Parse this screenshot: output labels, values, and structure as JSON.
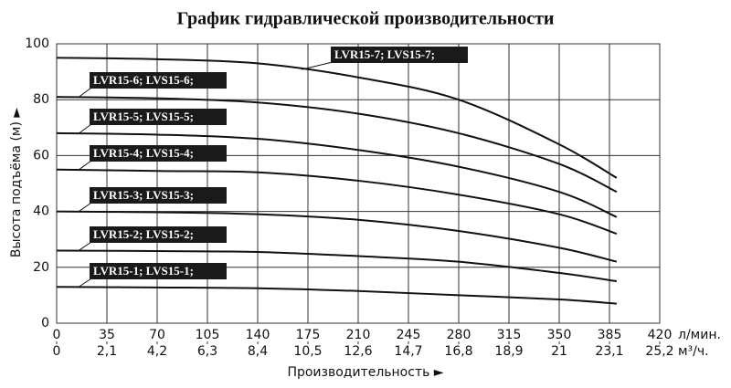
{
  "chart_data": {
    "type": "line",
    "title": "График гидравлической производительности",
    "x_label": "Производительность ►",
    "y_label": "Высота подъёма (м) ►",
    "x_unit": "л/мин.",
    "x2_unit": "м³/ч.",
    "x": [
      0,
      70,
      140,
      210,
      280,
      350,
      390
    ],
    "series": [
      {
        "name": "LVR15-1; LVS15-1;",
        "color": "#111111",
        "values": [
          13,
          12.8,
          12.5,
          11.5,
          10,
          8.5,
          7
        ]
      },
      {
        "name": "LVR15-2; LVS15-2;",
        "color": "#111111",
        "values": [
          26,
          25.8,
          25.5,
          24,
          22,
          18,
          15
        ]
      },
      {
        "name": "LVR15-3; LVS15-3;",
        "color": "#111111",
        "values": [
          40,
          39.7,
          39,
          37,
          33,
          27,
          22
        ]
      },
      {
        "name": "LVR15-4; LVS15-4;",
        "color": "#111111",
        "values": [
          55,
          54.5,
          54,
          51,
          46,
          39,
          32
        ]
      },
      {
        "name": "LVR15-5; LVS15-5;",
        "color": "#111111",
        "values": [
          68,
          67.5,
          66,
          62,
          56,
          47,
          38
        ]
      },
      {
        "name": "LVR15-6; LVS15-6;",
        "color": "#111111",
        "values": [
          81,
          80.5,
          79,
          75,
          68,
          57,
          47
        ]
      },
      {
        "name": "LVR15-7; LVS15-7;",
        "color": "#111111",
        "values": [
          95,
          94.5,
          93,
          88,
          80,
          64,
          52
        ]
      }
    ],
    "xlim": [
      0,
      420
    ],
    "xticks": [
      0,
      35,
      70,
      105,
      140,
      175,
      210,
      245,
      280,
      315,
      350,
      385,
      420
    ],
    "x2lim": [
      0,
      25.2
    ],
    "x2ticks": [
      0,
      {
        "value": 2.1,
        "label": "2,1"
      },
      {
        "value": 4.2,
        "label": "4,2"
      },
      {
        "value": 6.3,
        "label": "6,3"
      },
      {
        "value": 8.4,
        "label": "8,4"
      },
      {
        "value": 10.5,
        "label": "10,5"
      },
      {
        "value": 12.6,
        "label": "12,6"
      },
      {
        "value": 14.7,
        "label": "14,7"
      },
      {
        "value": 16.8,
        "label": "16,8"
      },
      {
        "value": 18.9,
        "label": "18,9"
      },
      {
        "value": 21,
        "label": "21"
      },
      {
        "value": 23.1,
        "label": "23,1"
      },
      {
        "value": 25.2,
        "label": "25,2"
      }
    ],
    "ylim": [
      0,
      100
    ],
    "yticks": [
      0,
      20,
      40,
      60,
      80,
      100
    ],
    "grid": true
  }
}
